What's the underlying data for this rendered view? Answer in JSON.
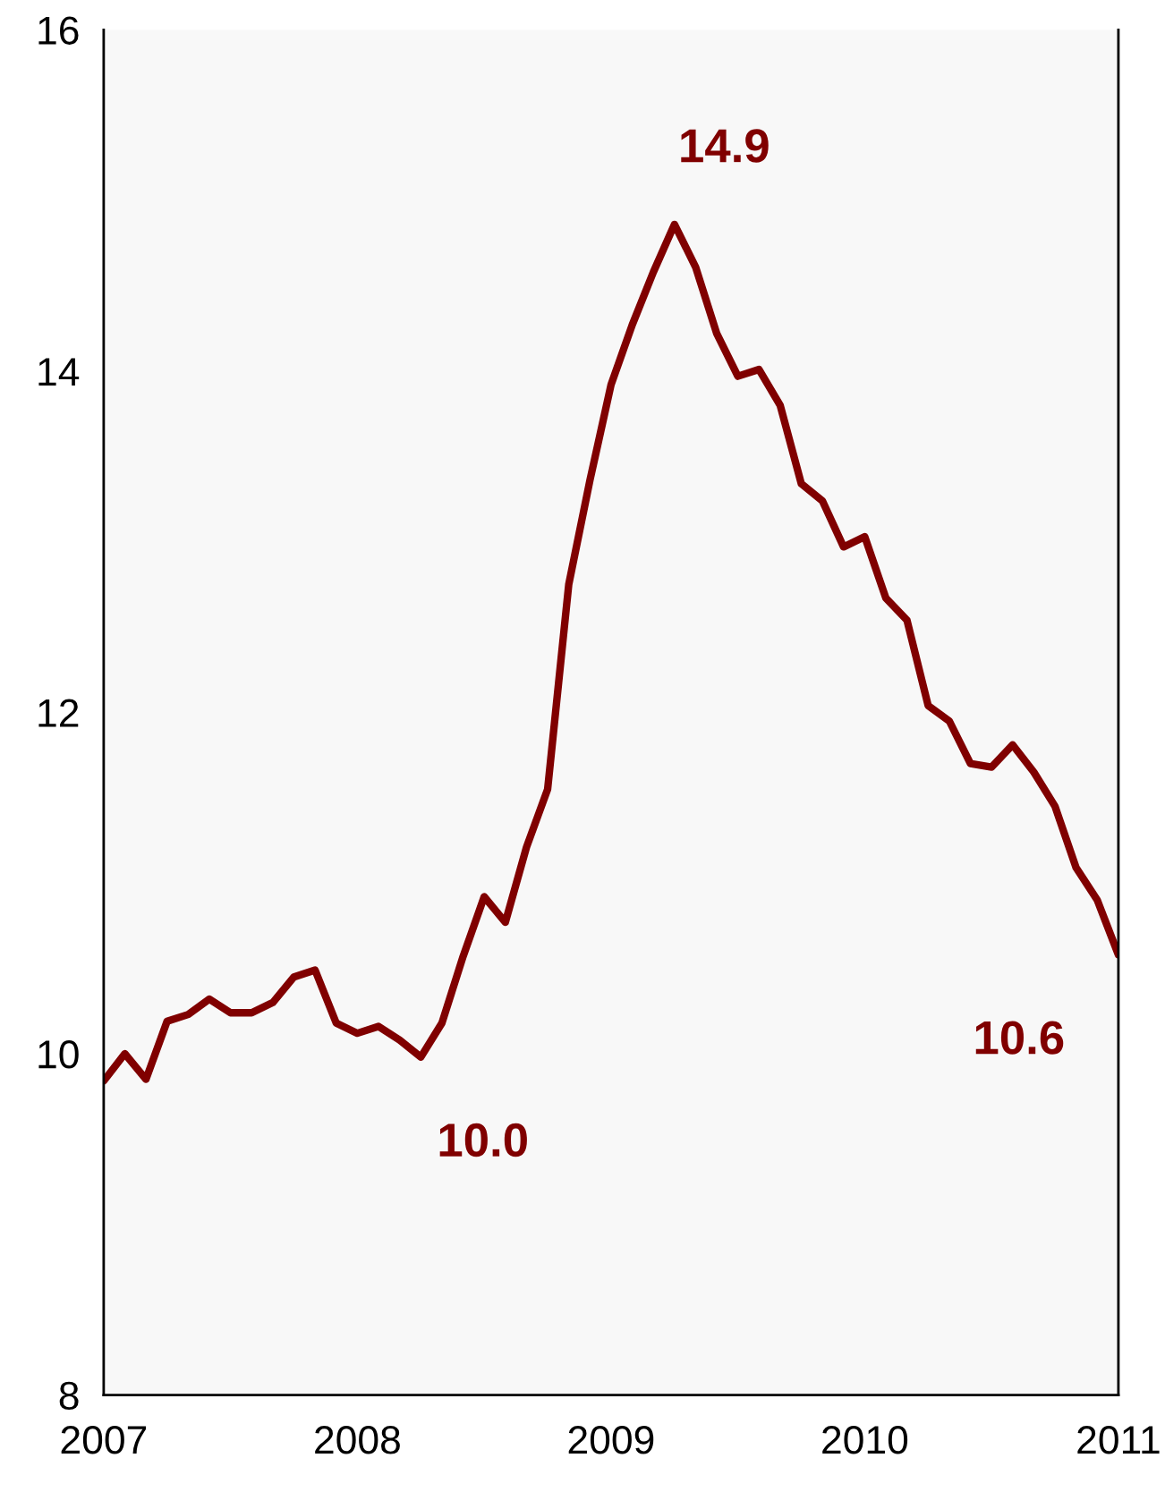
{
  "chart_data": {
    "type": "line",
    "x": [
      2007.0,
      2007.0833,
      2007.1667,
      2007.25,
      2007.3333,
      2007.4167,
      2007.5,
      2007.5833,
      2007.6667,
      2007.75,
      2007.8333,
      2007.9167,
      2008.0,
      2008.0833,
      2008.1667,
      2008.25,
      2008.3333,
      2008.4167,
      2008.5,
      2008.5833,
      2008.6667,
      2008.75,
      2008.8333,
      2008.9167,
      2009.0,
      2009.0833,
      2009.1667,
      2009.25,
      2009.3333,
      2009.4167,
      2009.5,
      2009.5833,
      2009.6667,
      2009.75,
      2009.8333,
      2009.9167,
      2010.0,
      2010.0833,
      2010.1667,
      2010.25,
      2010.3333,
      2010.4167,
      2010.5,
      2010.5833,
      2010.6667,
      2010.75,
      2010.8333,
      2010.9167,
      2011.0
    ],
    "series": [
      {
        "color": "#800000",
        "values": [
          9.84,
          10.0,
          9.85,
          10.19,
          10.23,
          10.32,
          10.24,
          10.24,
          10.3,
          10.45,
          10.49,
          10.18,
          10.12,
          10.16,
          10.08,
          9.98,
          10.18,
          10.57,
          10.92,
          10.77,
          11.21,
          11.55,
          12.75,
          13.36,
          13.92,
          14.27,
          14.58,
          14.86,
          14.61,
          14.22,
          13.97,
          14.01,
          13.8,
          13.34,
          13.24,
          12.97,
          13.03,
          12.67,
          12.54,
          12.04,
          11.95,
          11.7,
          11.68,
          11.81,
          11.65,
          11.45,
          11.09,
          10.9,
          10.58
        ]
      }
    ],
    "xlim": [
      2007,
      2011
    ],
    "xticks": [
      2007,
      2008,
      2009,
      2010,
      2011
    ],
    "ylim": [
      8,
      16
    ],
    "yticks": [
      8,
      10,
      12,
      14,
      16
    ],
    "grid": false,
    "legend": false,
    "marker": "none",
    "line_style": "solid",
    "annotations": [
      {
        "text": "10.0",
        "x": 2008.25,
        "y": 9.98
      },
      {
        "text": "14.9",
        "x": 2009.25,
        "y": 14.86
      },
      {
        "text": "10.6",
        "x": 2011.0,
        "y": 10.58
      }
    ]
  }
}
